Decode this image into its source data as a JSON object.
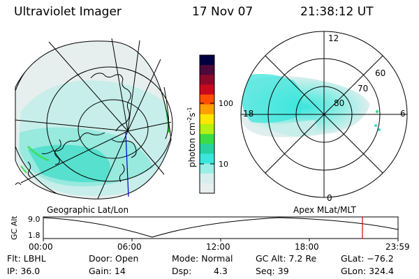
{
  "header": {
    "instrument": "Ultraviolet Imager",
    "date": "17 Nov 07",
    "time": "21:38:12 UT"
  },
  "left_panel": {
    "caption": "Geographic Lat/Lon"
  },
  "right_panel": {
    "caption": "Apex MLat/MLT",
    "mlt_labels": {
      "top": "12",
      "left": "18",
      "right": "6",
      "bottom": "0"
    },
    "lat_labels": [
      "60",
      "70",
      "80"
    ]
  },
  "colorbar": {
    "unit_parts": [
      "photon cm",
      "-2",
      "s",
      "-1"
    ],
    "ticks": [
      "100",
      "10"
    ],
    "scale": "log",
    "colors": [
      "#000040",
      "#4b0a3a",
      "#8b0a2a",
      "#c80a1e",
      "#ff5000",
      "#ffa000",
      "#ffe600",
      "#b4f014",
      "#3cdc46",
      "#28d2a0",
      "#3ce6dc",
      "#9aeee6",
      "#d7eeee",
      "#e6eeee"
    ]
  },
  "altitude_plot": {
    "y_label": "GC Alt",
    "y_ticks": [
      "9.0",
      "1.8"
    ],
    "x_ticks": [
      "00:00",
      "06:00",
      "12:00",
      "18:00",
      "23:59"
    ],
    "marker_color": "#e00000"
  },
  "status": {
    "row1": {
      "filter": "Flt: LBHL",
      "door": "Door: Open",
      "mode": "Mode: Normal",
      "gc_alt": "GC Alt: 7.2 Re",
      "glat": "GLat: −76.2"
    },
    "row2": {
      "ip": "IP: 36.0",
      "gain": "Gain: 14",
      "dsp_label": "Dsp:",
      "dsp_value": "4.3",
      "seq": "Seq: 39",
      "glon": "GLon: 324.4"
    }
  }
}
